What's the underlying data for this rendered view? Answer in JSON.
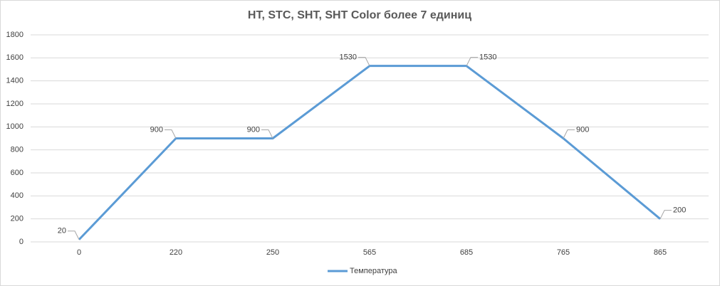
{
  "chart_data": {
    "type": "line",
    "title": "HT, STC, SHT, SHT Color более 7 единиц",
    "categories": [
      "0",
      "220",
      "250",
      "565",
      "685",
      "765",
      "865"
    ],
    "series": [
      {
        "name": "Температура",
        "color": "#5b9bd5",
        "values": [
          20,
          900,
          900,
          1530,
          1530,
          900,
          200
        ]
      }
    ],
    "ylim": [
      0,
      1800
    ],
    "yticks": [
      0,
      200,
      400,
      600,
      800,
      1000,
      1200,
      1400,
      1600,
      1800
    ],
    "grid": true,
    "legend": "bottom"
  }
}
